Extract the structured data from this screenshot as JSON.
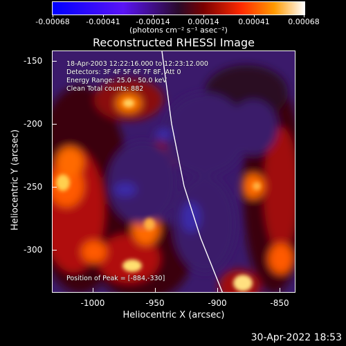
{
  "colorbar": {
    "tick_labels": [
      "-0.00068",
      "-0.00041",
      "-0.00014",
      "0.00014",
      "0.00041",
      "0.00068"
    ],
    "units": "(photons cm⁻² s⁻¹ asec⁻²)"
  },
  "plot": {
    "title": "Reconstructed RHESSI Image",
    "info_lines": [
      "18-Apr-2003 12:22:16.000 to 12:23:12.000",
      "Detectors: 3F 4F 5F 6F 7F 8F, Att 0",
      "Energy Range: 25.0 - 50.0 keV",
      "Clean     Total counts: 882"
    ],
    "peak_label": "Position of Peak = [-884,-330]",
    "x_axis": {
      "label": "Heliocentric X (arcsec)",
      "ticks": [
        "-1000",
        "-950",
        "-900",
        "-850"
      ],
      "range": [
        -1030,
        -835
      ]
    },
    "y_axis": {
      "label": "Heliocentric Y (arcsec)",
      "ticks": [
        "-150",
        "-200",
        "-250",
        "-300"
      ],
      "range": [
        -335,
        -140
      ]
    }
  },
  "footer": {
    "timestamp": "30-Apr-2022 18:53"
  }
}
